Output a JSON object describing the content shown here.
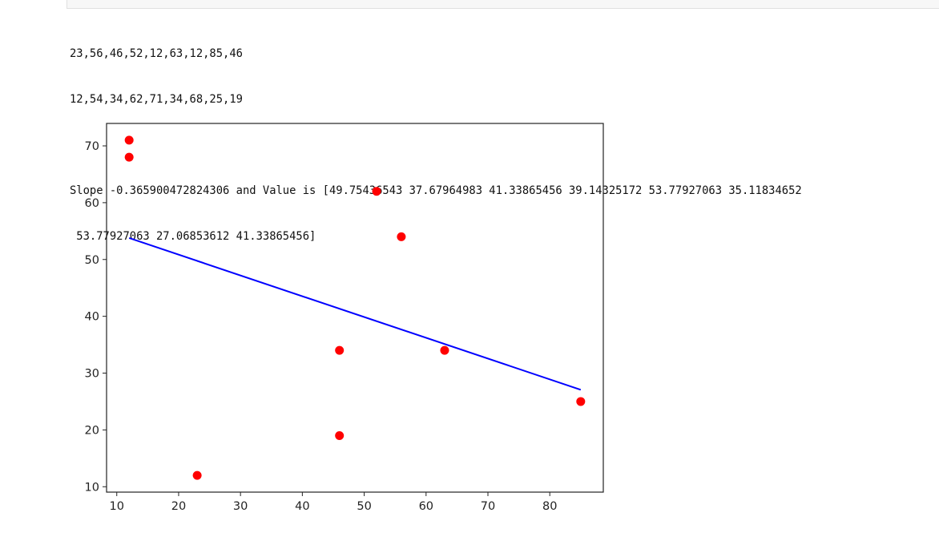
{
  "cell": {
    "input_glyph": "\""
  },
  "output": {
    "line1": "23,56,46,52,12,63,12,85,46",
    "line2": "12,54,34,62,71,34,68,25,19",
    "line3": "Slope -0.365900472824306 and Value is [49.75436543 37.67964983 41.33865456 39.14325172 53.77927063 35.11834652",
    "line4": " 53.77927063 27.06853612 41.33865456]"
  },
  "chart_data": {
    "type": "scatter",
    "series": [
      {
        "kind": "scatter",
        "color": "#ff0000",
        "x": [
          23,
          56,
          46,
          52,
          12,
          63,
          12,
          85,
          46
        ],
        "y": [
          12,
          54,
          34,
          62,
          71,
          34,
          68,
          25,
          19
        ]
      },
      {
        "kind": "line",
        "color": "#0000ff",
        "x": [
          23,
          56,
          46,
          52,
          12,
          63,
          12,
          85,
          46
        ],
        "y": [
          49.75436543,
          37.67964983,
          41.33865456,
          39.14325172,
          53.77927063,
          35.11834652,
          53.77927063,
          27.06853612,
          41.33865456
        ]
      }
    ],
    "xticks": [
      10,
      20,
      30,
      40,
      50,
      60,
      70,
      80
    ],
    "yticks": [
      10,
      20,
      30,
      40,
      50,
      60,
      70
    ],
    "xlim": [
      8.35,
      88.65
    ],
    "ylim": [
      9.05,
      73.95
    ],
    "grid": false
  }
}
